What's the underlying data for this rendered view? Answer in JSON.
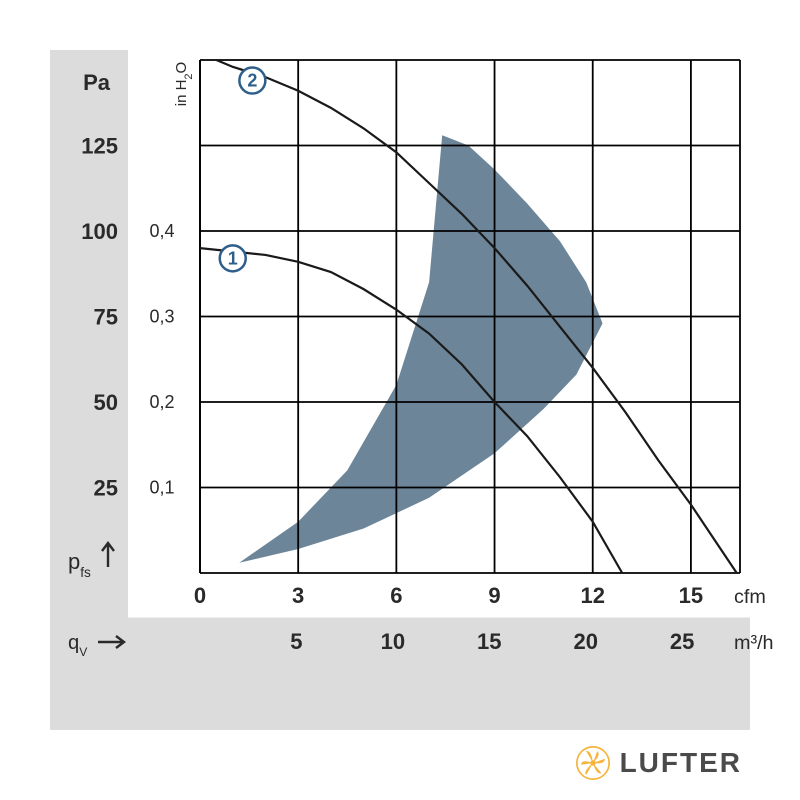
{
  "chart": {
    "type": "fan-performance-curve",
    "background_color": "#ffffff",
    "outer_band_color": "#dcdcdc",
    "plot_bg_color": "#ffffff",
    "grid_color": "#000000",
    "grid_stroke": 1.8,
    "curve_color": "#1a1a1a",
    "curve_stroke": 2.2,
    "region_fill": "#6d8598",
    "region_opacity": 1.0,
    "marker_circle_stroke": "#2e5f8a",
    "marker_circle_fill": "#ffffff",
    "marker_text_color": "#2e5f8a",
    "label_color": "#2a2a2a",
    "label_fontsize": 22,
    "tick_fontsize": 22,
    "secondary_tick_fontsize": 18,
    "axes": {
      "y_left": {
        "title": "Pa",
        "var_label": "p",
        "var_sub": "fs",
        "arrow": true,
        "ticks": [
          25,
          50,
          75,
          100,
          125
        ],
        "min": 0,
        "max": 150
      },
      "y_right_inner": {
        "title": "in H₂O",
        "ticks": [
          "0,1",
          "0,2",
          "0,3",
          "0,4"
        ],
        "tick_values": [
          25,
          50,
          75,
          100
        ]
      },
      "x_top_inner": {
        "title": "cfm",
        "ticks": [
          0,
          3,
          6,
          9,
          12,
          15
        ],
        "min": 0,
        "max": 16.5
      },
      "x_bottom": {
        "title": "m³/h",
        "var_label": "q",
        "var_sub": "V",
        "arrow": true,
        "ticks": [
          5,
          10,
          15,
          20,
          25
        ],
        "min": 0,
        "max": 28
      }
    },
    "curves": [
      {
        "id": "1",
        "marker_at_cfm": 1.0,
        "marker_at_pa": 92,
        "points_cfm_pa": [
          [
            0,
            95
          ],
          [
            1,
            94
          ],
          [
            2,
            93
          ],
          [
            3,
            91
          ],
          [
            4,
            88
          ],
          [
            5,
            83
          ],
          [
            6,
            77
          ],
          [
            7,
            70
          ],
          [
            8,
            61
          ],
          [
            9,
            50
          ],
          [
            10,
            40
          ],
          [
            11,
            28
          ],
          [
            12,
            15
          ],
          [
            12.9,
            0
          ]
        ]
      },
      {
        "id": "2",
        "marker_at_cfm": 1.6,
        "marker_at_pa": 144,
        "points_cfm_pa": [
          [
            0.5,
            150
          ],
          [
            1,
            148
          ],
          [
            2,
            145
          ],
          [
            3,
            141
          ],
          [
            4,
            136
          ],
          [
            5,
            130
          ],
          [
            6,
            123
          ],
          [
            7,
            114
          ],
          [
            8,
            105
          ],
          [
            9,
            95
          ],
          [
            10,
            84
          ],
          [
            11,
            72
          ],
          [
            12,
            60
          ],
          [
            13,
            47
          ],
          [
            14,
            33
          ],
          [
            15,
            20
          ],
          [
            16.4,
            0
          ]
        ]
      }
    ],
    "operating_region_cfm_pa": [
      [
        1.2,
        3
      ],
      [
        3,
        15
      ],
      [
        4.5,
        30
      ],
      [
        6,
        55
      ],
      [
        7,
        85
      ],
      [
        7.4,
        128
      ],
      [
        8.2,
        125
      ],
      [
        9,
        118
      ],
      [
        10,
        108
      ],
      [
        11,
        97
      ],
      [
        11.8,
        85
      ],
      [
        12.3,
        73
      ],
      [
        11.5,
        58
      ],
      [
        10.5,
        48
      ],
      [
        9,
        35
      ],
      [
        7,
        22
      ],
      [
        5,
        13
      ],
      [
        3,
        7
      ],
      [
        1.2,
        3
      ]
    ]
  },
  "brand": {
    "name": "LUFTER",
    "logo_color": "#f6b43a",
    "text_color": "#4a4a4a"
  }
}
